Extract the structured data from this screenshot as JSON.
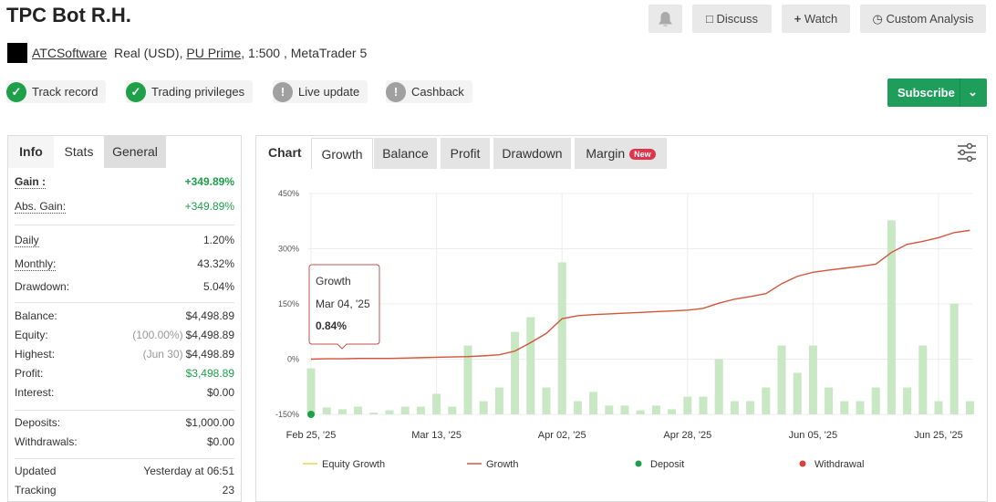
{
  "header": {
    "title": "TPC Bot R.H.",
    "buttons": [
      "Discuss",
      "Watch",
      "Custom Analysis"
    ],
    "owner": "ATCSoftware",
    "account": "Real (USD),",
    "broker": "PU Prime",
    "details": ", 1:500 , MetaTrader 5",
    "badges": [
      {
        "label": "Track record",
        "status": "ok"
      },
      {
        "label": "Trading privileges",
        "status": "ok"
      },
      {
        "label": "Live update",
        "status": "warn"
      },
      {
        "label": "Cashback",
        "status": "warn"
      }
    ],
    "subscribe": "Subscribe"
  },
  "stats": {
    "tabs": [
      "Info",
      "Stats",
      "General"
    ],
    "groups": [
      [
        {
          "label": "Gain :",
          "value": "+349.89%",
          "color": "#1ea049"
        },
        {
          "label": "Abs. Gain:",
          "value": "+349.89%",
          "color": "#1ea049"
        }
      ],
      [
        {
          "label": "Daily",
          "value": "1.20%"
        },
        {
          "label": "Monthly:",
          "value": "43.32%"
        },
        {
          "label": "Drawdown:",
          "value": "5.04%"
        }
      ],
      [
        {
          "label": "Balance:",
          "value": "$4,498.89"
        },
        {
          "label": "Equity:",
          "note": "(100.00%)",
          "value": "$4,498.89"
        },
        {
          "label": "Highest:",
          "note": "(Jun 30)",
          "value": "$4,498.89"
        },
        {
          "label": "Profit:",
          "value": "$3,498.89",
          "color": "#1ea049"
        },
        {
          "label": "Interest:",
          "value": "$0.00"
        }
      ],
      [
        {
          "label": "Deposits:",
          "value": "$1,000.00"
        },
        {
          "label": "Withdrawals:",
          "value": "$0.00"
        }
      ],
      [
        {
          "label": "Updated",
          "value": "Yesterday at 06:51"
        },
        {
          "label": "Tracking",
          "value": "23"
        }
      ]
    ]
  },
  "chart": {
    "type": "bar+line",
    "label": "Chart",
    "tabs": [
      "Growth",
      "Balance",
      "Profit",
      "Drawdown",
      "Margin"
    ],
    "new_badge": "New",
    "categories": [
      "Feb 25, '25",
      null,
      null,
      null,
      null,
      null,
      null,
      null,
      "Mar 13, '25",
      null,
      null,
      null,
      null,
      null,
      null,
      null,
      "Apr 02, '25",
      null,
      null,
      null,
      null,
      null,
      null,
      null,
      "Apr 28, '25",
      null,
      null,
      null,
      null,
      null,
      null,
      null,
      "Jun 05, '25",
      null,
      null,
      null,
      null,
      null,
      null,
      null,
      "Jun 25, '25",
      null,
      null
    ],
    "ylim": [
      -150,
      450
    ],
    "yticks": [
      {
        "value": 450,
        "label": "450%"
      },
      {
        "value": 300,
        "label": "300%"
      },
      {
        "value": 150,
        "label": "150%"
      },
      {
        "value": 0,
        "label": "0%"
      },
      {
        "value": -150,
        "label": "-150%"
      }
    ],
    "grid": true,
    "bars": {
      "color": "#c8e8c4",
      "values": [
        -25,
        -131,
        -136,
        -129,
        -145,
        -139,
        -129,
        -129,
        -94,
        -129,
        37,
        -114,
        -77,
        74,
        114,
        -77,
        263,
        -114,
        -89,
        -126,
        -126,
        -139,
        -126,
        -136,
        -102,
        -102,
        0,
        -114,
        -114,
        -77,
        37,
        -37,
        37,
        -77,
        -114,
        -114,
        -77,
        377,
        -77,
        37,
        -114,
        151,
        -114
      ]
    },
    "series": [
      {
        "name": "Equity Growth",
        "color": "#e8d44d",
        "style": "line"
      },
      {
        "name": "Growth",
        "color": "#d2553a",
        "style": "line",
        "values": [
          0,
          1,
          1,
          2,
          2,
          2,
          3,
          4,
          5,
          6,
          7,
          9,
          12,
          22,
          45,
          70,
          110,
          118,
          121,
          123,
          125,
          127,
          129,
          131,
          133,
          138,
          152,
          163,
          170,
          178,
          205,
          225,
          236,
          242,
          247,
          252,
          258,
          290,
          312,
          320,
          330,
          344,
          349.89
        ]
      },
      {
        "name": "Deposit",
        "color": "#1ea049",
        "style": "dot",
        "values": [
          -150,
          null,
          null,
          null,
          null,
          null,
          null,
          null,
          null,
          null,
          null,
          null,
          null,
          null,
          null,
          null,
          null,
          null,
          null,
          null,
          null,
          null,
          null,
          null,
          null,
          null,
          null,
          null,
          null,
          null,
          null,
          null,
          null,
          null,
          null,
          null,
          null,
          null,
          null,
          null,
          null,
          null,
          null
        ]
      },
      {
        "name": "Withdrawal",
        "color": "#d9403a",
        "style": "dot"
      }
    ],
    "tooltip": {
      "title": "Growth",
      "date": "Mar 04, '25",
      "value": "0.84%"
    }
  }
}
